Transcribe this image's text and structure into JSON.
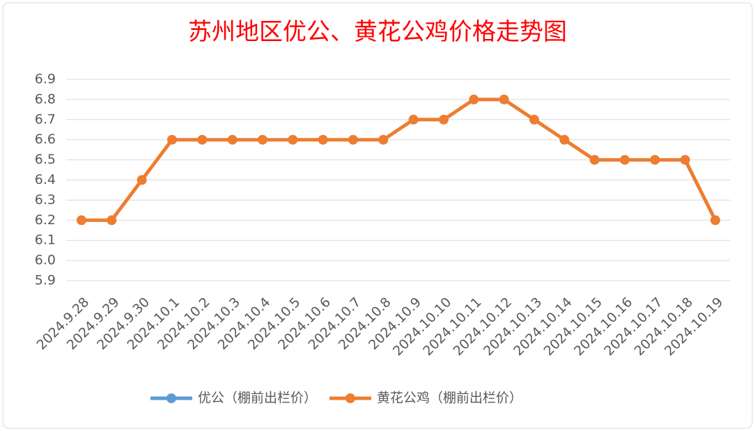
{
  "chart_data": {
    "type": "line",
    "title": "苏州地区优公、黄花公鸡价格走势图",
    "categories": [
      "2024.9.28",
      "2024.9.29",
      "2024.9.30",
      "2024.10.1",
      "2024.10.2",
      "2024.10.3",
      "2024.10.4",
      "2024.10.5",
      "2024.10.6",
      "2024.10.7",
      "2024.10.8",
      "2024.10.9",
      "2024.10.10",
      "2024.10.11",
      "2024.10.12",
      "2024.10.13",
      "2024.10.14",
      "2024.10.15",
      "2024.10.16",
      "2024.10.17",
      "2024.10.18",
      "2024.10.19"
    ],
    "series": [
      {
        "name": "优公（棚前出栏价）",
        "color": "#5b9bd5",
        "values": [
          null,
          null,
          null,
          null,
          null,
          null,
          null,
          null,
          null,
          null,
          null,
          null,
          null,
          null,
          null,
          null,
          null,
          null,
          null,
          null,
          null,
          null
        ]
      },
      {
        "name": "黄花公鸡（棚前出栏价）",
        "color": "#ed7d31",
        "values": [
          6.2,
          6.2,
          6.4,
          6.6,
          6.6,
          6.6,
          6.6,
          6.6,
          6.6,
          6.6,
          6.6,
          6.7,
          6.7,
          6.8,
          6.8,
          6.7,
          6.6,
          6.5,
          6.5,
          6.5,
          6.5,
          6.2
        ]
      }
    ],
    "ylim": [
      5.9,
      6.9
    ],
    "yticks": [
      5.9,
      {
        "value": 6,
        "label": "6.0"
      },
      6.1,
      6.2,
      6.3,
      6.4,
      6.5,
      6.6,
      6.7,
      6.8,
      6.9
    ],
    "grid": true,
    "legend": "bottom"
  }
}
